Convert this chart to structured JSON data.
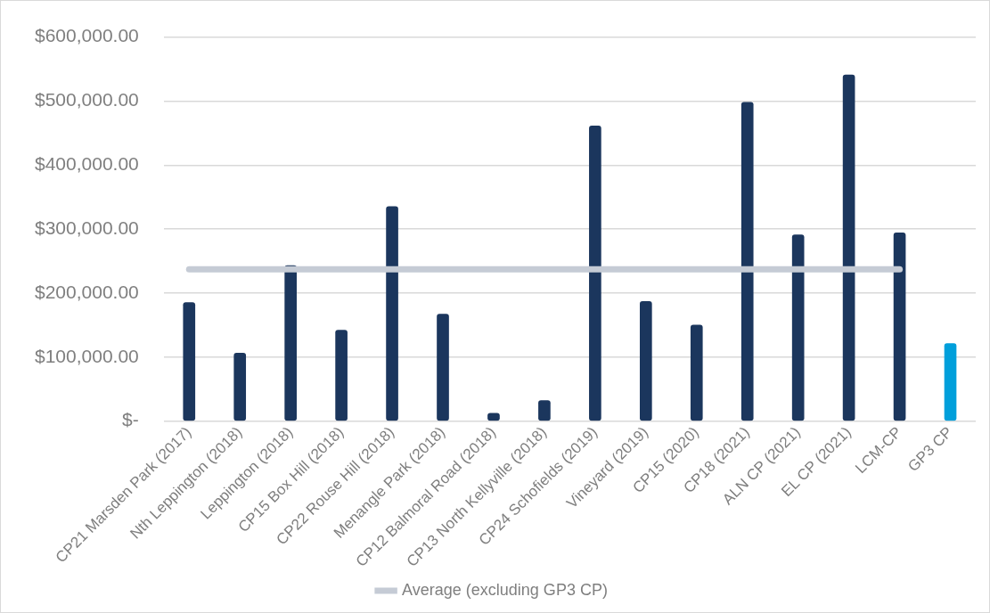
{
  "chart_data": {
    "type": "bar",
    "categories": [
      "CP21 Marsden Park (2017)",
      "Nth Leppington (2018)",
      "Leppington (2018)",
      "CP15 Box Hill (2018)",
      "CP22 Rouse Hill (2018)",
      "Menangle Park (2018)",
      "CP12 Balmoral Road (2018)",
      "CP13 North Kellyville (2018)",
      "CP24 Schofields (2019)",
      "Vineyard (2019)",
      "CP15 (2020)",
      "CP18 (2021)",
      "ALN CP (2021)",
      "EL CP (2021)",
      "LCM-CP",
      "GP3 CP"
    ],
    "series": [
      {
        "colors": [
          "#1b365d",
          "#1b365d",
          "#1b365d",
          "#1b365d",
          "#1b365d",
          "#1b365d",
          "#1b365d",
          "#1b365d",
          "#1b365d",
          "#1b365d",
          "#1b365d",
          "#1b365d",
          "#1b365d",
          "#1b365d",
          "#1b365d",
          "#009fdb"
        ],
        "values": [
          185000,
          106000,
          243000,
          142000,
          335000,
          167000,
          12000,
          32000,
          461000,
          187000,
          150000,
          498000,
          291000,
          541000,
          294000,
          121000
        ]
      },
      {
        "type": "line",
        "name": "Average (excluding GP3 CP)",
        "color": "#c5cbd5",
        "values": [
          237000,
          237000,
          237000,
          237000,
          237000,
          237000,
          237000,
          237000,
          237000,
          237000,
          237000,
          237000,
          237000,
          237000,
          237000,
          null
        ]
      }
    ],
    "ylim": [
      0,
      600000
    ],
    "yticks": [
      {
        "value": 0,
        "label": "$-"
      },
      {
        "value": 100000,
        "label": "$100,000.00"
      },
      {
        "value": 200000,
        "label": "$200,000.00"
      },
      {
        "value": 300000,
        "label": "$300,000.00"
      },
      {
        "value": 400000,
        "label": "$400,000.00"
      },
      {
        "value": 500000,
        "label": "$500,000.00"
      },
      {
        "value": 600000,
        "label": "$600,000.00"
      }
    ],
    "grid": "y",
    "legend": "bottom",
    "marker": "none"
  }
}
